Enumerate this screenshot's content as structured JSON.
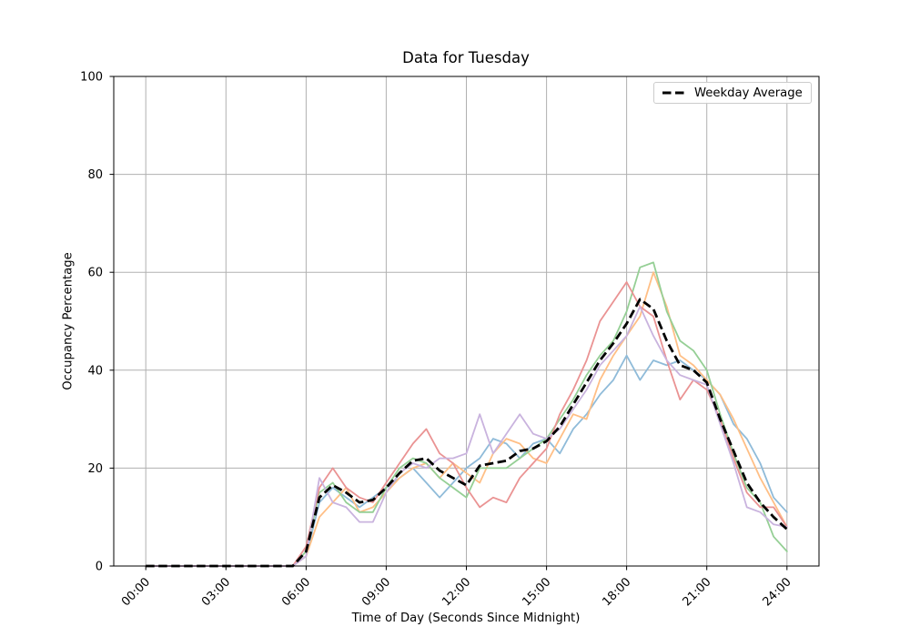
{
  "chart_data": {
    "type": "line",
    "title": "Data for Tuesday",
    "xlabel": "Time of Day (Seconds Since Midnight)",
    "ylabel": "Occupancy Percentage",
    "ylim": [
      0,
      100
    ],
    "y_ticks": [
      0,
      20,
      40,
      60,
      80,
      100
    ],
    "xlim_hours": [
      -1.2,
      25.2
    ],
    "x_tick_hours": [
      0,
      3,
      6,
      9,
      12,
      15,
      18,
      21,
      24
    ],
    "x_tick_labels": [
      "00:00",
      "03:00",
      "06:00",
      "09:00",
      "12:00",
      "15:00",
      "18:00",
      "21:00",
      "24:00"
    ],
    "grid": true,
    "grid_color": "#b0b0b0",
    "spine_color": "#000000",
    "legend_position": "upper right",
    "sample_interval_minutes": 30,
    "x_hours": [
      0,
      0.5,
      1,
      1.5,
      2,
      2.5,
      3,
      3.5,
      4,
      4.5,
      5,
      5.5,
      6,
      6.5,
      7,
      7.5,
      8,
      8.5,
      9,
      9.5,
      10,
      10.5,
      11,
      11.5,
      12,
      12.5,
      13,
      13.5,
      14,
      14.5,
      15,
      15.5,
      16,
      16.5,
      17,
      17.5,
      18,
      18.5,
      19,
      19.5,
      20,
      20.5,
      21,
      21.5,
      22,
      22.5,
      23,
      23.5,
      24
    ],
    "series": [
      {
        "name": "blue",
        "color": "#8FBBD9",
        "values": [
          0,
          0,
          0,
          0,
          0,
          0,
          0,
          0,
          0,
          0,
          0,
          0,
          2,
          13,
          16,
          14,
          12,
          14,
          16,
          18,
          20,
          17,
          14,
          17,
          20,
          22,
          26,
          25,
          22,
          25,
          26,
          23,
          28,
          31,
          35,
          38,
          43,
          38,
          42,
          41,
          42,
          40,
          38,
          35,
          29,
          26,
          21,
          14,
          11
        ]
      },
      {
        "name": "orange",
        "color": "#FFBF86",
        "values": [
          0,
          0,
          0,
          0,
          0,
          0,
          0,
          0,
          0,
          0,
          0,
          0,
          2,
          10,
          13,
          16,
          11,
          12,
          15,
          18,
          20,
          21,
          18,
          21,
          19,
          17,
          23,
          26,
          25,
          22,
          21,
          26,
          31,
          30,
          38,
          43,
          47,
          51,
          60,
          53,
          43,
          41,
          38,
          35,
          30,
          24,
          18,
          13,
          8
        ]
      },
      {
        "name": "green",
        "color": "#95CF95",
        "values": [
          0,
          0,
          0,
          0,
          0,
          0,
          0,
          0,
          0,
          0,
          0,
          0,
          3,
          15,
          17,
          13,
          11,
          11,
          16,
          20,
          22,
          21,
          18,
          16,
          14,
          20,
          20,
          20,
          22,
          24,
          26,
          30,
          34,
          39,
          43,
          46,
          52,
          61,
          62,
          52,
          46,
          44,
          40,
          31,
          23,
          16,
          13,
          6,
          3
        ]
      },
      {
        "name": "red",
        "color": "#EA9393",
        "values": [
          0,
          0,
          0,
          0,
          0,
          0,
          0,
          0,
          0,
          0,
          0,
          0,
          4,
          16,
          20,
          16,
          14,
          13,
          17,
          21,
          25,
          28,
          23,
          21,
          16,
          12,
          14,
          13,
          18,
          21,
          24,
          31,
          36,
          42,
          50,
          54,
          58,
          53,
          51,
          42,
          34,
          38,
          36,
          30,
          22,
          15,
          12,
          12,
          8
        ]
      },
      {
        "name": "purple",
        "color": "#C9B3DE",
        "values": [
          0,
          0,
          0,
          0,
          0,
          0,
          0,
          0,
          0,
          0,
          0,
          0,
          2,
          18,
          13,
          12,
          9,
          9,
          15,
          19,
          21,
          20,
          22,
          22,
          23,
          31,
          23,
          27,
          31,
          27,
          26,
          28,
          32,
          36,
          41,
          44,
          47,
          53,
          47,
          42,
          39,
          38,
          37,
          29,
          21,
          12,
          11,
          8.5,
          8
        ]
      }
    ],
    "average": {
      "label": "Weekday Average",
      "color": "#000000",
      "style": "dashed",
      "values": [
        0,
        0,
        0,
        0,
        0,
        0,
        0,
        0,
        0,
        0,
        0,
        0,
        3,
        14,
        16.5,
        15,
        13,
        13.5,
        16,
        19,
        21.5,
        22,
        19.5,
        18,
        16.5,
        20.5,
        21,
        21.5,
        23.5,
        24,
        25.5,
        28.5,
        33,
        37.5,
        42,
        45.5,
        49.5,
        54.5,
        52.5,
        46,
        41,
        40,
        37.5,
        30,
        23.5,
        17,
        13,
        10,
        7.5
      ]
    }
  }
}
